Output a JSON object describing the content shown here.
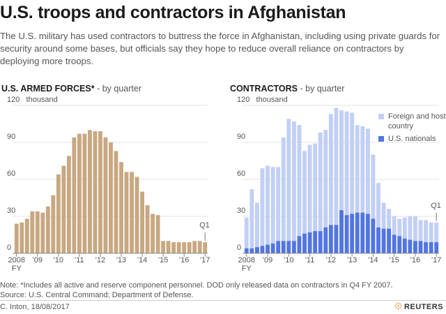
{
  "header": {
    "title": "U.S. troops and contractors in Afghanistan",
    "subtitle": "The U.S. military has used contractors to buttress the force in Afghanistan, including using private guards for security around some bases, but officials say they hope to reduce overall reliance on contractors by deploying more troops."
  },
  "colors": {
    "troops": "#c8a882",
    "foreign": "#c2cff5",
    "us_nationals": "#5275e0",
    "grid": "#e3e3e3",
    "axis": "#555555"
  },
  "chart_data": [
    {
      "type": "bar",
      "title": "U.S. ARMED FORCES*",
      "subtitle": "- by quarter",
      "ylabel": "thousand",
      "ylim": [
        0,
        120
      ],
      "yticks": [
        "120",
        "90",
        "60",
        "30",
        "0"
      ],
      "ytick_values": [
        120,
        90,
        60,
        30,
        0
      ],
      "xticks": [
        "2008",
        "'09",
        "'10",
        "'11",
        "'12",
        "'13",
        "'14",
        "'15",
        "'16",
        "'17"
      ],
      "xtick_extra": "FY",
      "annotation": "Q1",
      "series": [
        {
          "values": [
            24,
            25,
            28,
            34,
            34,
            33,
            38,
            47,
            64,
            71,
            79,
            94,
            97,
            97,
            100,
            99,
            99,
            94,
            90,
            83,
            74,
            66,
            66,
            62,
            50,
            39,
            32,
            31,
            10,
            10,
            9,
            9,
            9,
            9,
            10,
            10,
            9
          ]
        }
      ]
    },
    {
      "type": "bar",
      "stacked": true,
      "title": "CONTRACTORS",
      "subtitle": "- by quarter",
      "ylabel": "thousand",
      "ylim": [
        0,
        120
      ],
      "yticks": [
        "120",
        "90",
        "60",
        "30",
        "0"
      ],
      "ytick_values": [
        120,
        90,
        60,
        30,
        0
      ],
      "xticks": [
        "2008",
        "'09",
        "'10",
        "'11",
        "'12",
        "'13",
        "'14",
        "'15",
        "'16",
        "'17"
      ],
      "xtick_extra": "FY",
      "annotation": "Q1",
      "legend": [
        "Foreign and host country",
        "U.S. nationals"
      ],
      "series": [
        {
          "name": "U.S. nationals",
          "values": [
            4,
            4,
            5,
            6,
            7,
            8,
            10,
            10,
            10,
            10,
            14,
            16,
            17,
            18,
            18,
            21,
            23,
            23,
            35,
            31,
            32,
            33,
            33,
            32,
            28,
            21,
            20,
            20,
            15,
            14,
            12,
            11,
            10,
            10,
            9,
            9,
            9
          ]
        },
        {
          "name": "Foreign and host country",
          "values": [
            25,
            48,
            36,
            63,
            64,
            62,
            60,
            84,
            99,
            97,
            90,
            67,
            71,
            71,
            80,
            79,
            90,
            95,
            81,
            84,
            82,
            71,
            70,
            69,
            52,
            36,
            21,
            16,
            15,
            14,
            17,
            19,
            20,
            17,
            18,
            16,
            16
          ]
        }
      ],
      "totals": [
        29,
        52,
        41,
        69,
        71,
        70,
        70,
        94,
        109,
        107,
        104,
        83,
        88,
        89,
        98,
        100,
        113,
        118,
        116,
        115,
        114,
        104,
        103,
        101,
        80,
        57,
        41,
        36,
        30,
        28,
        29,
        30,
        30,
        27,
        27,
        25,
        25
      ]
    }
  ],
  "footer": {
    "note": "Note: *Includes all active and reserve component personnel. DOD only released data on contractors in Q4 FY 2007.",
    "source": "Source: U.S. Central Command; Department of Defense.",
    "credit": "C. Inton, 18/08/2017",
    "logo": "REUTERS"
  }
}
